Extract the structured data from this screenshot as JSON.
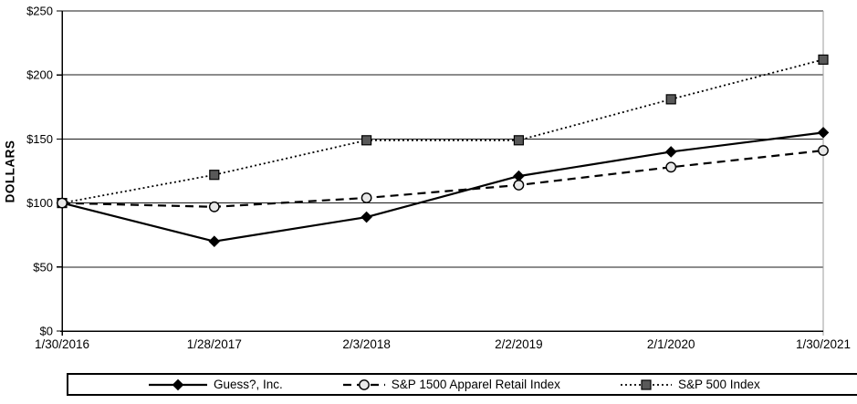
{
  "page": {
    "background": "#ffffff",
    "description_colors": {
      "grid_line": "#1a1a1a",
      "axis_line": "#000000",
      "right_border": "#9d9d9d"
    }
  },
  "chart_data": {
    "type": "line",
    "title": "",
    "xlabel": "",
    "ylabel": "DOLLARS",
    "ylim": [
      0,
      250
    ],
    "grid": "horizontal",
    "legend_position": "bottom",
    "categories": [
      "1/30/2016",
      "1/28/2017",
      "2/3/2018",
      "2/2/2019",
      "2/1/2020",
      "1/30/2021"
    ],
    "y_ticks": [
      {
        "value": 0,
        "label": "$0"
      },
      {
        "value": 50,
        "label": "$50"
      },
      {
        "value": 100,
        "label": "$100"
      },
      {
        "value": 150,
        "label": "$150"
      },
      {
        "value": 200,
        "label": "$200"
      },
      {
        "value": 250,
        "label": "$250"
      }
    ],
    "series": [
      {
        "name": "Guess?, Inc.",
        "values": [
          100,
          70,
          89,
          121,
          140,
          155
        ],
        "line_style": "solid",
        "marker": "diamond",
        "line_color": "#000000",
        "marker_fill": "#000000",
        "marker_stroke": "#000000"
      },
      {
        "name": "S&P 1500 Apparel Retail Index",
        "values": [
          100,
          97,
          104,
          114,
          128,
          141
        ],
        "line_style": "dashed",
        "marker": "circle",
        "line_color": "#000000",
        "marker_fill": "#e8e8e8",
        "marker_stroke": "#000000"
      },
      {
        "name": "S&P 500 Index",
        "values": [
          100,
          122,
          149,
          149,
          181,
          212
        ],
        "line_style": "dotted",
        "marker": "square",
        "line_color": "#000000",
        "marker_fill": "#595959",
        "marker_stroke": "#000000"
      }
    ]
  }
}
